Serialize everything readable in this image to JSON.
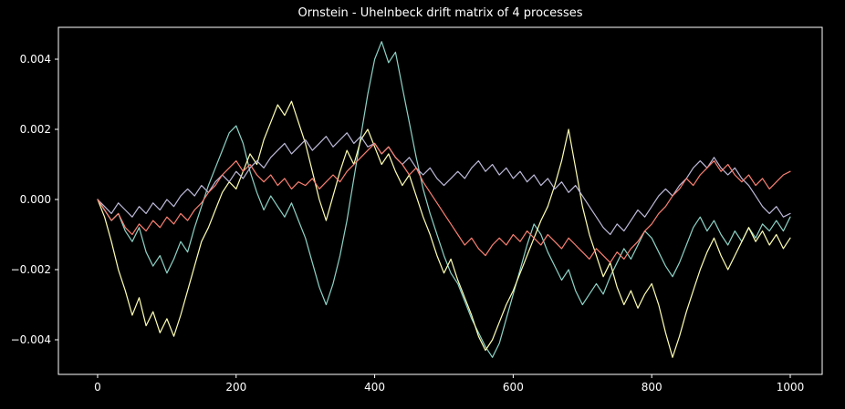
{
  "figure": {
    "background": "#000000",
    "text_color": "#ffffff",
    "spine_color": "#ffffff"
  },
  "chart_data": {
    "type": "line",
    "title": "Ornstein - Uhelnbeck drift matrix of 4 processes",
    "xlabel": "",
    "ylabel": "",
    "grid": false,
    "legend": "none",
    "x_ticks": [
      0,
      200,
      400,
      600,
      800,
      1000
    ],
    "x_tick_labels": [
      "0",
      "200",
      "400",
      "600",
      "800",
      "1000"
    ],
    "y_ticks": [
      -0.004,
      -0.002,
      0.0,
      0.002,
      0.004
    ],
    "y_tick_labels": [
      "−0.004",
      "−0.002",
      "0.000",
      "0.002",
      "0.004"
    ],
    "xlim": [
      -56.6,
      1046.1
    ],
    "ylim": [
      -0.004987,
      0.004909
    ],
    "x_step": 10,
    "series": [
      {
        "name": "process-1",
        "color": "#8dd3c7",
        "values": [
          0.0,
          -0.0003,
          -0.0006,
          -0.0004,
          -0.0009,
          -0.0012,
          -0.0008,
          -0.0015,
          -0.0019,
          -0.0016,
          -0.0021,
          -0.0017,
          -0.0012,
          -0.0015,
          -0.0008,
          -0.0002,
          0.0004,
          0.0009,
          0.0014,
          0.0019,
          0.0021,
          0.0016,
          0.0008,
          0.0002,
          -0.0003,
          0.0001,
          -0.0002,
          -0.0005,
          -0.0001,
          -0.0006,
          -0.0011,
          -0.0018,
          -0.0025,
          -0.003,
          -0.0024,
          -0.0016,
          -0.0006,
          0.0006,
          0.0018,
          0.003,
          0.004,
          0.0045,
          0.0039,
          0.0042,
          0.0032,
          0.0022,
          0.0012,
          0.0003,
          -0.0004,
          -0.001,
          -0.0016,
          -0.0021,
          -0.0024,
          -0.0029,
          -0.0034,
          -0.0038,
          -0.0042,
          -0.0045,
          -0.0041,
          -0.0034,
          -0.0027,
          -0.002,
          -0.0013,
          -0.0007,
          -0.001,
          -0.0015,
          -0.0019,
          -0.0023,
          -0.002,
          -0.0026,
          -0.003,
          -0.0027,
          -0.0024,
          -0.0027,
          -0.0022,
          -0.0018,
          -0.0014,
          -0.0017,
          -0.0013,
          -0.0009,
          -0.0011,
          -0.0015,
          -0.0019,
          -0.0022,
          -0.0018,
          -0.0013,
          -0.0008,
          -0.0005,
          -0.0009,
          -0.0006,
          -0.001,
          -0.0013,
          -0.0009,
          -0.0012,
          -0.0008,
          -0.0011,
          -0.0007,
          -0.0009,
          -0.0006,
          -0.0009,
          -0.0005
        ]
      },
      {
        "name": "process-2",
        "color": "#ffffb3",
        "values": [
          0.0,
          -0.0005,
          -0.0012,
          -0.002,
          -0.0026,
          -0.0033,
          -0.0028,
          -0.0036,
          -0.0032,
          -0.0038,
          -0.0034,
          -0.0039,
          -0.0033,
          -0.0026,
          -0.0019,
          -0.0012,
          -0.0008,
          -0.0003,
          0.0002,
          0.0005,
          0.0003,
          0.0008,
          0.0013,
          0.001,
          0.0017,
          0.0022,
          0.0027,
          0.0024,
          0.0028,
          0.0022,
          0.0016,
          0.0008,
          0.0,
          -0.0006,
          0.0001,
          0.0008,
          0.0014,
          0.001,
          0.0017,
          0.002,
          0.0015,
          0.001,
          0.0013,
          0.0008,
          0.0004,
          0.0007,
          0.0001,
          -0.0005,
          -0.001,
          -0.0016,
          -0.0021,
          -0.0017,
          -0.0023,
          -0.0028,
          -0.0033,
          -0.0039,
          -0.0043,
          -0.004,
          -0.0035,
          -0.003,
          -0.0026,
          -0.0021,
          -0.0016,
          -0.0011,
          -0.0006,
          -0.0002,
          0.0004,
          0.0011,
          0.002,
          0.0009,
          -0.0002,
          -0.001,
          -0.0016,
          -0.0022,
          -0.0018,
          -0.0025,
          -0.003,
          -0.0026,
          -0.0031,
          -0.0027,
          -0.0024,
          -0.003,
          -0.0038,
          -0.0045,
          -0.0039,
          -0.0032,
          -0.0026,
          -0.002,
          -0.0015,
          -0.0011,
          -0.0016,
          -0.002,
          -0.0016,
          -0.0012,
          -0.0008,
          -0.0012,
          -0.0009,
          -0.0013,
          -0.001,
          -0.0014,
          -0.0011
        ]
      },
      {
        "name": "process-3",
        "color": "#bebada",
        "values": [
          0.0,
          -0.0002,
          -0.0004,
          -0.0001,
          -0.0003,
          -0.0005,
          -0.0002,
          -0.0004,
          -0.0001,
          -0.0003,
          0.0,
          -0.0002,
          0.0001,
          0.0003,
          0.0001,
          0.0004,
          0.0002,
          0.0005,
          0.0007,
          0.0005,
          0.0008,
          0.0006,
          0.0009,
          0.0011,
          0.0009,
          0.0012,
          0.0014,
          0.0016,
          0.0013,
          0.0015,
          0.0017,
          0.0014,
          0.0016,
          0.0018,
          0.0015,
          0.0017,
          0.0019,
          0.0016,
          0.0018,
          0.0015,
          0.0016,
          0.0013,
          0.0015,
          0.0012,
          0.001,
          0.0012,
          0.0009,
          0.0007,
          0.0009,
          0.0006,
          0.0004,
          0.0006,
          0.0008,
          0.0006,
          0.0009,
          0.0011,
          0.0008,
          0.001,
          0.0007,
          0.0009,
          0.0006,
          0.0008,
          0.0005,
          0.0007,
          0.0004,
          0.0006,
          0.0003,
          0.0005,
          0.0002,
          0.0004,
          0.0001,
          -0.0002,
          -0.0005,
          -0.0008,
          -0.001,
          -0.0007,
          -0.0009,
          -0.0006,
          -0.0003,
          -0.0005,
          -0.0002,
          0.0001,
          0.0003,
          0.0001,
          0.0004,
          0.0006,
          0.0009,
          0.0011,
          0.0009,
          0.0012,
          0.0009,
          0.0007,
          0.0009,
          0.0006,
          0.0004,
          0.0001,
          -0.0002,
          -0.0004,
          -0.0002,
          -0.0005,
          -0.0004
        ]
      },
      {
        "name": "process-4",
        "color": "#fb8072",
        "values": [
          0.0,
          -0.0003,
          -0.0006,
          -0.0004,
          -0.0008,
          -0.001,
          -0.0007,
          -0.0009,
          -0.0006,
          -0.0008,
          -0.0005,
          -0.0007,
          -0.0004,
          -0.0006,
          -0.0003,
          -0.0001,
          0.0002,
          0.0004,
          0.0007,
          0.0009,
          0.0011,
          0.0008,
          0.001,
          0.0007,
          0.0005,
          0.0007,
          0.0004,
          0.0006,
          0.0003,
          0.0005,
          0.0004,
          0.0006,
          0.0003,
          0.0005,
          0.0007,
          0.0005,
          0.0008,
          0.001,
          0.0012,
          0.0014,
          0.0016,
          0.0013,
          0.0015,
          0.0012,
          0.001,
          0.0007,
          0.0009,
          0.0005,
          0.0002,
          -0.0001,
          -0.0004,
          -0.0007,
          -0.001,
          -0.0013,
          -0.0011,
          -0.0014,
          -0.0016,
          -0.0013,
          -0.0011,
          -0.0013,
          -0.001,
          -0.0012,
          -0.0009,
          -0.0011,
          -0.0013,
          -0.001,
          -0.0012,
          -0.0014,
          -0.0011,
          -0.0013,
          -0.0015,
          -0.0017,
          -0.0014,
          -0.0016,
          -0.0018,
          -0.0015,
          -0.0017,
          -0.0014,
          -0.0012,
          -0.0009,
          -0.0007,
          -0.0004,
          -0.0002,
          0.0001,
          0.0003,
          0.0006,
          0.0004,
          0.0007,
          0.0009,
          0.0011,
          0.0008,
          0.001,
          0.0007,
          0.0005,
          0.0007,
          0.0004,
          0.0006,
          0.0003,
          0.0005,
          0.0007,
          0.0008
        ]
      }
    ]
  }
}
